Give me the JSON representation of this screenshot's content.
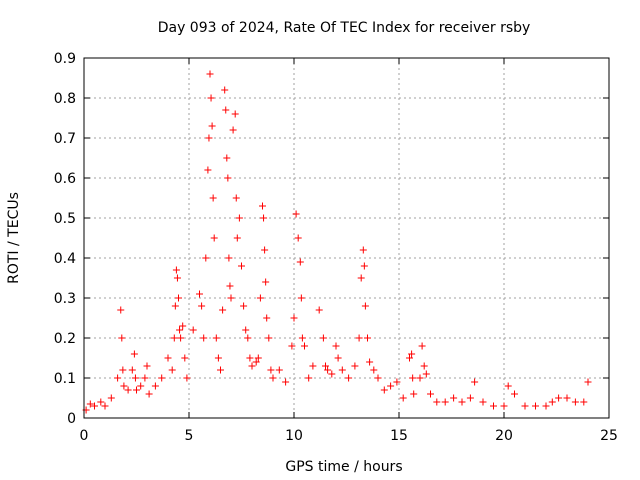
{
  "chart_data": {
    "type": "scatter",
    "title": "Day 093 of 2024, Rate Of TEC Index for receiver rsby",
    "xlabel": "GPS time / hours",
    "ylabel": "ROTI / TECUs",
    "xlim": [
      0,
      25
    ],
    "ylim": [
      0,
      0.9
    ],
    "xticks": [
      "0",
      "5",
      "10",
      "15",
      "20",
      "25"
    ],
    "yticks": [
      "0",
      "0.1",
      "0.2",
      "0.3",
      "0.4",
      "0.5",
      "0.6",
      "0.7",
      "0.8",
      "0.9"
    ],
    "grid": true,
    "marker": "+",
    "color": "#ff0000",
    "series": [
      {
        "x": [
          0.1,
          0.3,
          0.5,
          0.8,
          1.0,
          1.3,
          1.6,
          1.75,
          1.8,
          1.85,
          1.9,
          2.1,
          2.3,
          2.4,
          2.45,
          2.5,
          2.7,
          2.9,
          3.0,
          3.1,
          3.4,
          3.7,
          4.0,
          4.2,
          4.3,
          4.35,
          4.4,
          4.45,
          4.5,
          4.55,
          4.6,
          4.7,
          4.8,
          4.9,
          5.2,
          5.5,
          5.6,
          5.7,
          5.8,
          5.9,
          5.95,
          6.0,
          6.05,
          6.1,
          6.15,
          6.2,
          6.3,
          6.4,
          6.5,
          6.6,
          6.7,
          6.75,
          6.8,
          6.85,
          6.9,
          6.95,
          7.0,
          7.1,
          7.2,
          7.25,
          7.3,
          7.4,
          7.5,
          7.6,
          7.7,
          7.8,
          7.9,
          8.0,
          8.2,
          8.3,
          8.4,
          8.5,
          8.55,
          8.6,
          8.65,
          8.7,
          8.8,
          8.9,
          9.0,
          9.3,
          9.6,
          9.9,
          10.0,
          10.1,
          10.2,
          10.3,
          10.35,
          10.4,
          10.5,
          10.7,
          10.9,
          11.2,
          11.4,
          11.5,
          11.6,
          11.8,
          12.0,
          12.1,
          12.3,
          12.6,
          12.9,
          13.1,
          13.2,
          13.3,
          13.35,
          13.4,
          13.5,
          13.6,
          13.8,
          14.0,
          14.3,
          14.6,
          14.9,
          15.2,
          15.5,
          15.6,
          15.65,
          15.7,
          16.0,
          16.1,
          16.2,
          16.3,
          16.5,
          16.8,
          17.2,
          17.6,
          18.0,
          18.4,
          18.6,
          19.0,
          19.5,
          20.0,
          20.2,
          20.5,
          21.0,
          21.5,
          22.0,
          22.3,
          22.6,
          23.0,
          23.4,
          23.8,
          24.0
        ],
        "y": [
          0.02,
          0.035,
          0.03,
          0.04,
          0.03,
          0.05,
          0.1,
          0.27,
          0.2,
          0.12,
          0.08,
          0.07,
          0.12,
          0.16,
          0.1,
          0.07,
          0.08,
          0.1,
          0.13,
          0.06,
          0.08,
          0.1,
          0.15,
          0.12,
          0.2,
          0.28,
          0.37,
          0.35,
          0.3,
          0.22,
          0.2,
          0.23,
          0.15,
          0.1,
          0.22,
          0.31,
          0.28,
          0.2,
          0.4,
          0.62,
          0.7,
          0.86,
          0.8,
          0.73,
          0.55,
          0.45,
          0.2,
          0.15,
          0.12,
          0.27,
          0.82,
          0.77,
          0.65,
          0.6,
          0.4,
          0.33,
          0.3,
          0.72,
          0.76,
          0.55,
          0.45,
          0.5,
          0.38,
          0.28,
          0.22,
          0.2,
          0.15,
          0.13,
          0.14,
          0.15,
          0.3,
          0.53,
          0.5,
          0.42,
          0.34,
          0.25,
          0.2,
          0.12,
          0.1,
          0.12,
          0.09,
          0.18,
          0.25,
          0.51,
          0.45,
          0.39,
          0.3,
          0.2,
          0.18,
          0.1,
          0.13,
          0.27,
          0.2,
          0.13,
          0.12,
          0.11,
          0.18,
          0.15,
          0.12,
          0.1,
          0.13,
          0.2,
          0.35,
          0.42,
          0.38,
          0.28,
          0.2,
          0.14,
          0.12,
          0.1,
          0.07,
          0.08,
          0.09,
          0.05,
          0.15,
          0.16,
          0.1,
          0.06,
          0.1,
          0.18,
          0.13,
          0.11,
          0.06,
          0.04,
          0.04,
          0.05,
          0.04,
          0.05,
          0.09,
          0.04,
          0.03,
          0.03,
          0.08,
          0.06,
          0.03,
          0.03,
          0.03,
          0.04,
          0.05,
          0.05,
          0.04,
          0.04,
          0.09
        ]
      }
    ]
  }
}
